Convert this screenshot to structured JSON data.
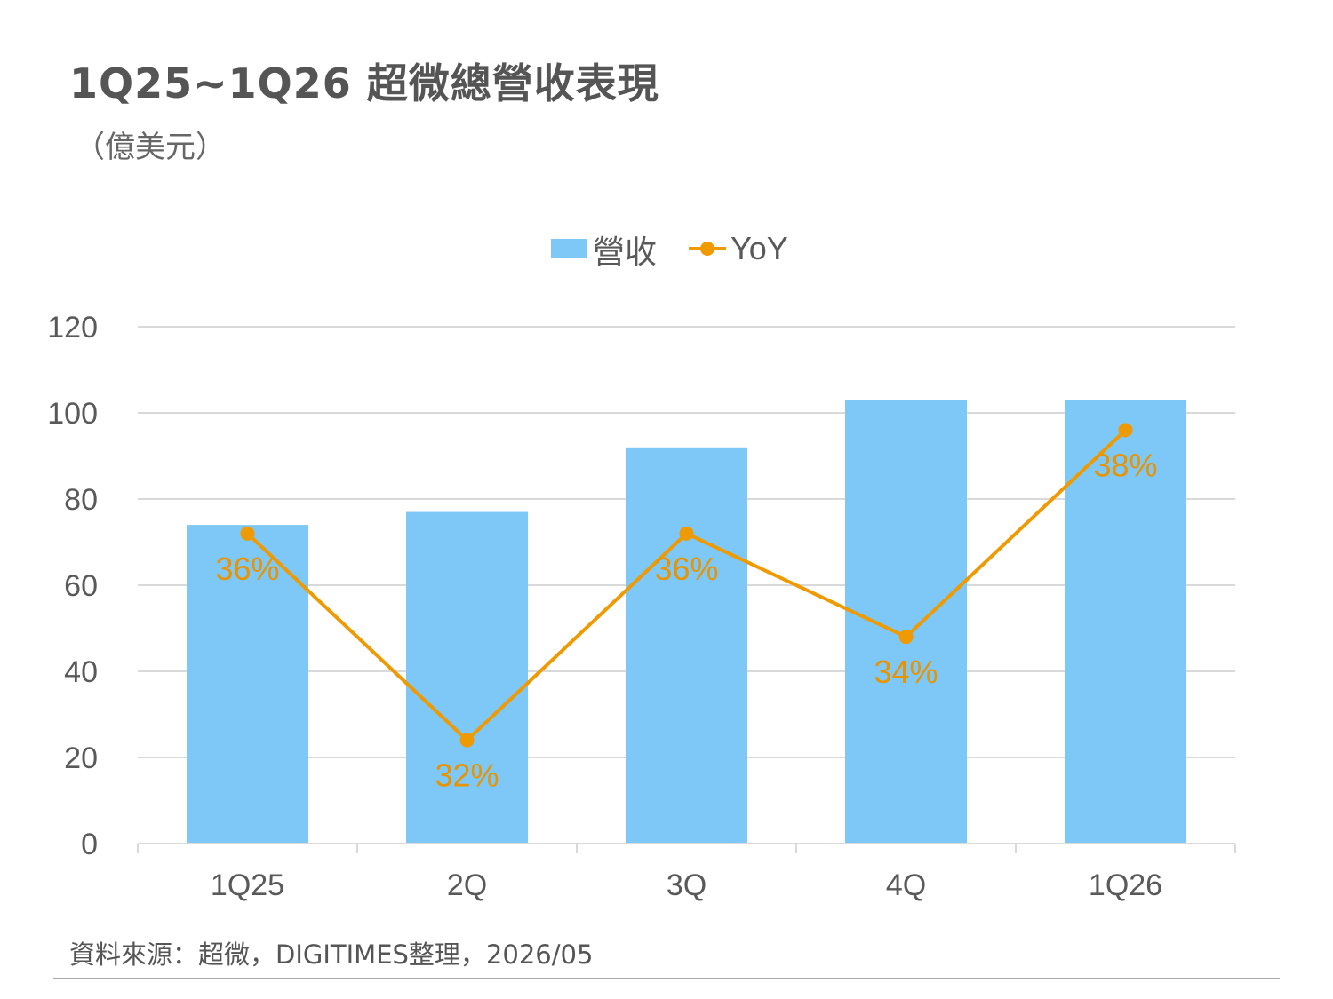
{
  "header": {
    "title": "1Q25~1Q26  超微總營收表現",
    "unit": "（億美元）"
  },
  "footer": {
    "source": "資料來源：超微，DIGITIMES整理，2026/05"
  },
  "colors": {
    "bar": "#7ec8f8",
    "line": "#ee9a00",
    "label": "#e89400",
    "grid": "#d9d9d9",
    "axis_text": "#595959"
  },
  "chart_data": {
    "type": "bar",
    "categories": [
      "1Q25",
      "2Q",
      "3Q",
      "4Q",
      "1Q26"
    ],
    "series": [
      {
        "name": "營收",
        "type": "bar",
        "axis": "left",
        "values": [
          74,
          77,
          92,
          103,
          103
        ]
      },
      {
        "name": "YoY",
        "type": "line",
        "axis": "right",
        "values": [
          36,
          32,
          36,
          34,
          38
        ],
        "labels": [
          "36%",
          "32%",
          "36%",
          "34%",
          "38%"
        ]
      }
    ],
    "ylim": [
      0,
      120
    ],
    "yticks": [
      "0",
      "20",
      "40",
      "60",
      "80",
      "100",
      "120"
    ],
    "y2lim": [
      30,
      40
    ],
    "grid": true,
    "legend": "top-center"
  }
}
